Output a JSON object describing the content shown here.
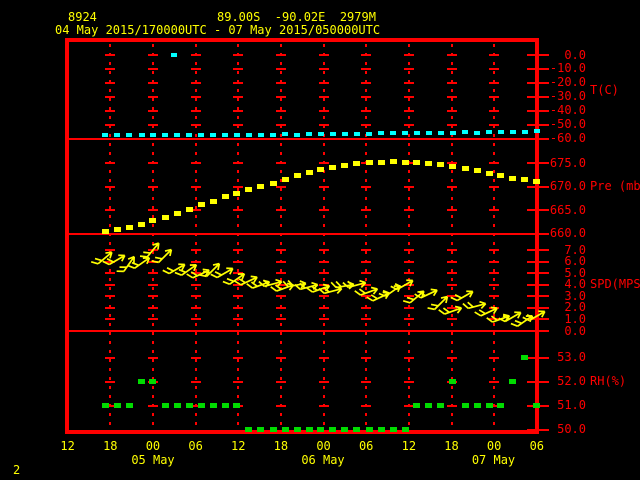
{
  "header": {
    "station_id": "8924",
    "location": "89.00S  -90.02E  2979M",
    "period": "04 May 2015/170000UTC - 07 May 2015/050000UTC"
  },
  "corner_label": "2",
  "colors": {
    "background": "#000000",
    "frame_and_axis": "#ff0000",
    "header_text": "#ffff00",
    "temperature_series": "#00ffff",
    "pressure_series": "#ffff00",
    "wind_series": "#ffff00",
    "humidity_series": "#00dc00"
  },
  "x_axis": {
    "hour_labels": [
      "12",
      "18",
      "00",
      "06",
      "12",
      "18",
      "00",
      "06",
      "12",
      "18",
      "00",
      "06"
    ],
    "date_labels": [
      "05 May",
      "06 May",
      "07 May"
    ]
  },
  "x_hours_since_04may_1200utc": [
    5.3,
    7.0,
    8.7,
    10.4,
    12.0,
    13.7,
    15.4,
    17.1,
    18.8,
    20.5,
    22.2,
    23.8,
    25.5,
    27.2,
    28.9,
    30.6,
    32.3,
    34.0,
    35.6,
    37.3,
    39.0,
    40.7,
    42.4,
    44.1,
    45.8,
    47.5,
    49.1,
    50.8,
    52.5,
    54.2,
    55.9,
    57.6,
    59.3,
    60.9,
    62.6,
    64.3,
    66.0
  ],
  "chart_data": [
    {
      "type": "scatter",
      "name": "temperature",
      "ylabel": "T(C)",
      "ylim": [
        -60,
        0
      ],
      "yticks": [
        "0.0",
        "-10.0",
        "-20.0",
        "-30.0",
        "-40.0",
        "-50.0",
        "-60.0"
      ],
      "values": [
        -57.2,
        -57.3,
        -57.1,
        -57.3,
        -57.4,
        -57.2,
        -57.3,
        -57.1,
        -57.2,
        -57.3,
        -57.1,
        -57.0,
        -57.1,
        -57.2,
        -57.0,
        -56.9,
        -57.0,
        -56.8,
        -56.6,
        -56.7,
        -56.5,
        -56.3,
        -56.4,
        -56.2,
        -56.0,
        -56.1,
        -55.9,
        -55.7,
        -55.8,
        -55.6,
        -55.4,
        -55.5,
        -55.3,
        -55.2,
        -55.0,
        -54.9,
        -54.7
      ],
      "outliers": [
        {
          "hour": 14.9,
          "value": -0.3
        }
      ]
    },
    {
      "type": "scatter",
      "name": "pressure",
      "ylabel": "Pre (mb)",
      "ylim": [
        660,
        680
      ],
      "yticks": [
        "675.0",
        "670.0",
        "665.0",
        "660.0"
      ],
      "values": [
        660.4,
        660.8,
        661.2,
        661.9,
        662.7,
        663.5,
        664.3,
        665.2,
        666.1,
        666.9,
        667.8,
        668.6,
        669.4,
        670.0,
        670.7,
        671.5,
        672.3,
        673.0,
        673.6,
        674.1,
        674.5,
        674.9,
        675.1,
        675.2,
        675.3,
        675.2,
        675.1,
        674.9,
        674.6,
        674.2,
        673.8,
        673.3,
        672.8,
        672.3,
        671.8,
        671.4,
        671.0
      ]
    },
    {
      "type": "wind-barbs",
      "name": "wind-speed",
      "ylabel": "SPD(MPS)",
      "ylim": [
        0,
        8.5
      ],
      "yticks": [
        "7.0",
        "6.0",
        "5.0",
        "4.0",
        "3.0",
        "2.0",
        "1.0",
        "0.0"
      ],
      "speeds": [
        6.3,
        6.1,
        5.8,
        5.9,
        7.0,
        6.5,
        5.4,
        5.3,
        4.9,
        5.3,
        5.0,
        4.5,
        4.3,
        4.0,
        4.1,
        3.7,
        4.0,
        3.8,
        3.6,
        3.5,
        3.9,
        4.0,
        3.4,
        2.9,
        3.5,
        4.0,
        2.9,
        3.2,
        2.4,
        1.7,
        3.0,
        2.2,
        1.6,
        1.0,
        1.2,
        0.9,
        1.3
      ],
      "directions_deg_above_horizontal": [
        40,
        30,
        55,
        35,
        50,
        45,
        30,
        35,
        25,
        45,
        30,
        35,
        25,
        20,
        15,
        20,
        10,
        15,
        20,
        15,
        10,
        15,
        20,
        25,
        35,
        30,
        40,
        25,
        45,
        20,
        30,
        15,
        25,
        20,
        30,
        35,
        30
      ]
    },
    {
      "type": "scatter",
      "name": "relative-humidity",
      "ylabel": "RH(%)",
      "ylim": [
        50,
        54
      ],
      "yticks": [
        "53.0",
        "52.0",
        "51.0",
        "50.0"
      ],
      "values": [
        51,
        51,
        51,
        52,
        52,
        51,
        51,
        51,
        51,
        51,
        51,
        51,
        50,
        50,
        50,
        50,
        50,
        50,
        50,
        50,
        50,
        50,
        50,
        50,
        50,
        50,
        51,
        51,
        51,
        52,
        51,
        51,
        51,
        51,
        52,
        53,
        51
      ]
    }
  ]
}
